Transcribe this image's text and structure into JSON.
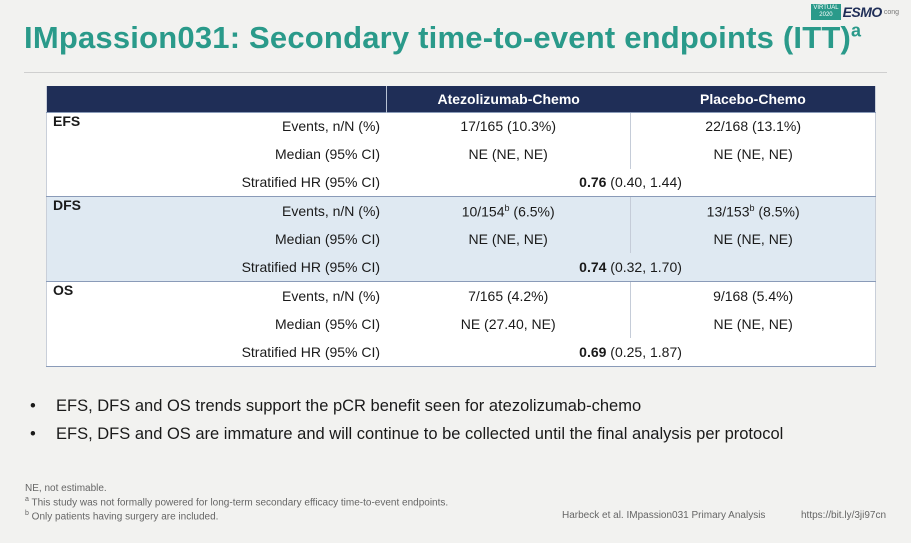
{
  "title": {
    "text": "IMpassion031: Secondary time-to-event endpoints (ITT)",
    "superscript": "a"
  },
  "logo": {
    "virtual": "VIRTUAL",
    "year": "2020",
    "esmo": "ESMO",
    "congress": "cong"
  },
  "table": {
    "headers": [
      "Atezolizumab-Chemo",
      "Placebo-Chemo"
    ],
    "groups": [
      {
        "name": "EFS",
        "rows": [
          {
            "label": "Events, n/N (%)",
            "atezo": "17/165 (10.3%)",
            "placebo": "22/168 (13.1%)"
          },
          {
            "label": "Median (95% CI)",
            "atezo": "NE  (NE, NE)",
            "placebo": "NE  (NE, NE)"
          }
        ],
        "hr_label": "Stratified HR (95% CI)",
        "hr_value": "0.76",
        "hr_ci": " (0.40, 1.44)"
      },
      {
        "name": "DFS",
        "rows": [
          {
            "label": "Events, n/N (%)",
            "atezo_main": "10/154",
            "atezo_sup": "b",
            "atezo_rest": " (6.5%)",
            "placebo_main": "13/153",
            "placebo_sup": "b",
            "placebo_rest": " (8.5%)"
          },
          {
            "label": "Median (95% CI)",
            "atezo": "NE  (NE, NE)",
            "placebo": "NE  (NE, NE)"
          }
        ],
        "hr_label": "Stratified HR (95% CI)",
        "hr_value": "0.74",
        "hr_ci": " (0.32, 1.70)"
      },
      {
        "name": "OS",
        "rows": [
          {
            "label": "Events, n/N (%)",
            "atezo": "7/165 (4.2%)",
            "placebo": "9/168 (5.4%)"
          },
          {
            "label": "Median (95% CI)",
            "atezo": "NE (27.40, NE)",
            "placebo": "NE  (NE, NE)"
          }
        ],
        "hr_label": "Stratified HR (95% CI)",
        "hr_value": "0.69",
        "hr_ci": " (0.25, 1.87)"
      }
    ]
  },
  "bullets": [
    "EFS, DFS and OS trends support the pCR benefit seen for atezolizumab-chemo",
    "EFS, DFS and OS are immature and will continue to be collected until the final analysis per protocol"
  ],
  "footnotes": {
    "ne": "NE, not estimable.",
    "a_mark": "a",
    "a_text": " This study was not formally powered for long-term secondary efficacy time-to-event endpoints.",
    "b_mark": "b",
    "b_text": " Only patients having surgery are included."
  },
  "citation": "Harbeck et al. IMpassion031 Primary Analysis",
  "url": "https://bit.ly/3ji97cn"
}
